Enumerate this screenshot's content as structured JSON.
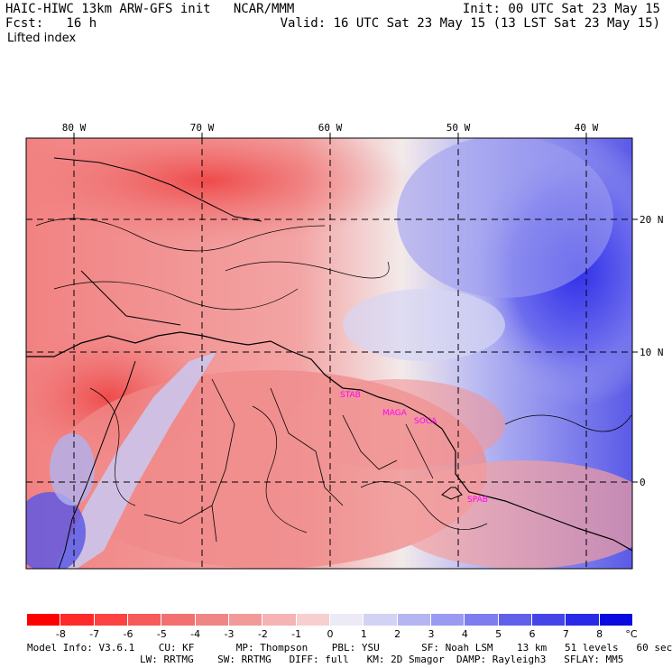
{
  "header": {
    "title_line": "HAIC-HIWC 13km ARW-GFS init   NCAR/MMM",
    "init": "Init: 00 UTC Sat 23 May 15",
    "fcst": "Fcst:   16 h",
    "valid": "Valid: 16 UTC Sat 23 May 15 (13 LST Sat 23 May 15)",
    "field": "Lifted index"
  },
  "map": {
    "lon_labels": [
      "80 W",
      "70 W",
      "60 W",
      "50 W",
      "40 W"
    ],
    "lat_labels": [
      "20 N",
      "10 N",
      "0"
    ],
    "stations": [
      "STAB",
      "MAGA",
      "SOCA",
      "SPAB"
    ],
    "colors": {
      "negative_strong": "#ff1a1a",
      "negative_mid": "#f06767",
      "negative_light": "#f7a7a7",
      "neutral": "#f6f2f2",
      "positive_light": "#c9c9f5",
      "positive_mid": "#7a7af0",
      "positive_strong": "#2424e8",
      "station_label": "#ff00ff"
    }
  },
  "colorbar": {
    "labels": [
      "-8",
      "-7",
      "-6",
      "-5",
      "-4",
      "-3",
      "-2",
      "-1",
      "0",
      "1",
      "2",
      "3",
      "4",
      "5",
      "6",
      "7",
      "8"
    ],
    "unit": "°C",
    "colors": [
      "#ff0000",
      "#ff2a2a",
      "#fc4242",
      "#f75a5a",
      "#f27070",
      "#f08585",
      "#f29a9a",
      "#f5b3b3",
      "#f7cfcf",
      "#ecebf5",
      "#d2d2f5",
      "#b5b5f2",
      "#9a9af2",
      "#7d7def",
      "#6060ea",
      "#4444e8",
      "#2a2ae6",
      "#0a0ae0"
    ]
  },
  "footer": {
    "line1": "Model Info: V3.6.1    CU: KF       MP: Thompson    PBL: YSU       SF: Noah LSM    13 km   51 levels   60 sec",
    "line2": "LW: RRTMG    SW: RRTMG   DIFF: full   KM: 2D Smagor  DAMP: Rayleigh3   SFLAY: MM5"
  }
}
